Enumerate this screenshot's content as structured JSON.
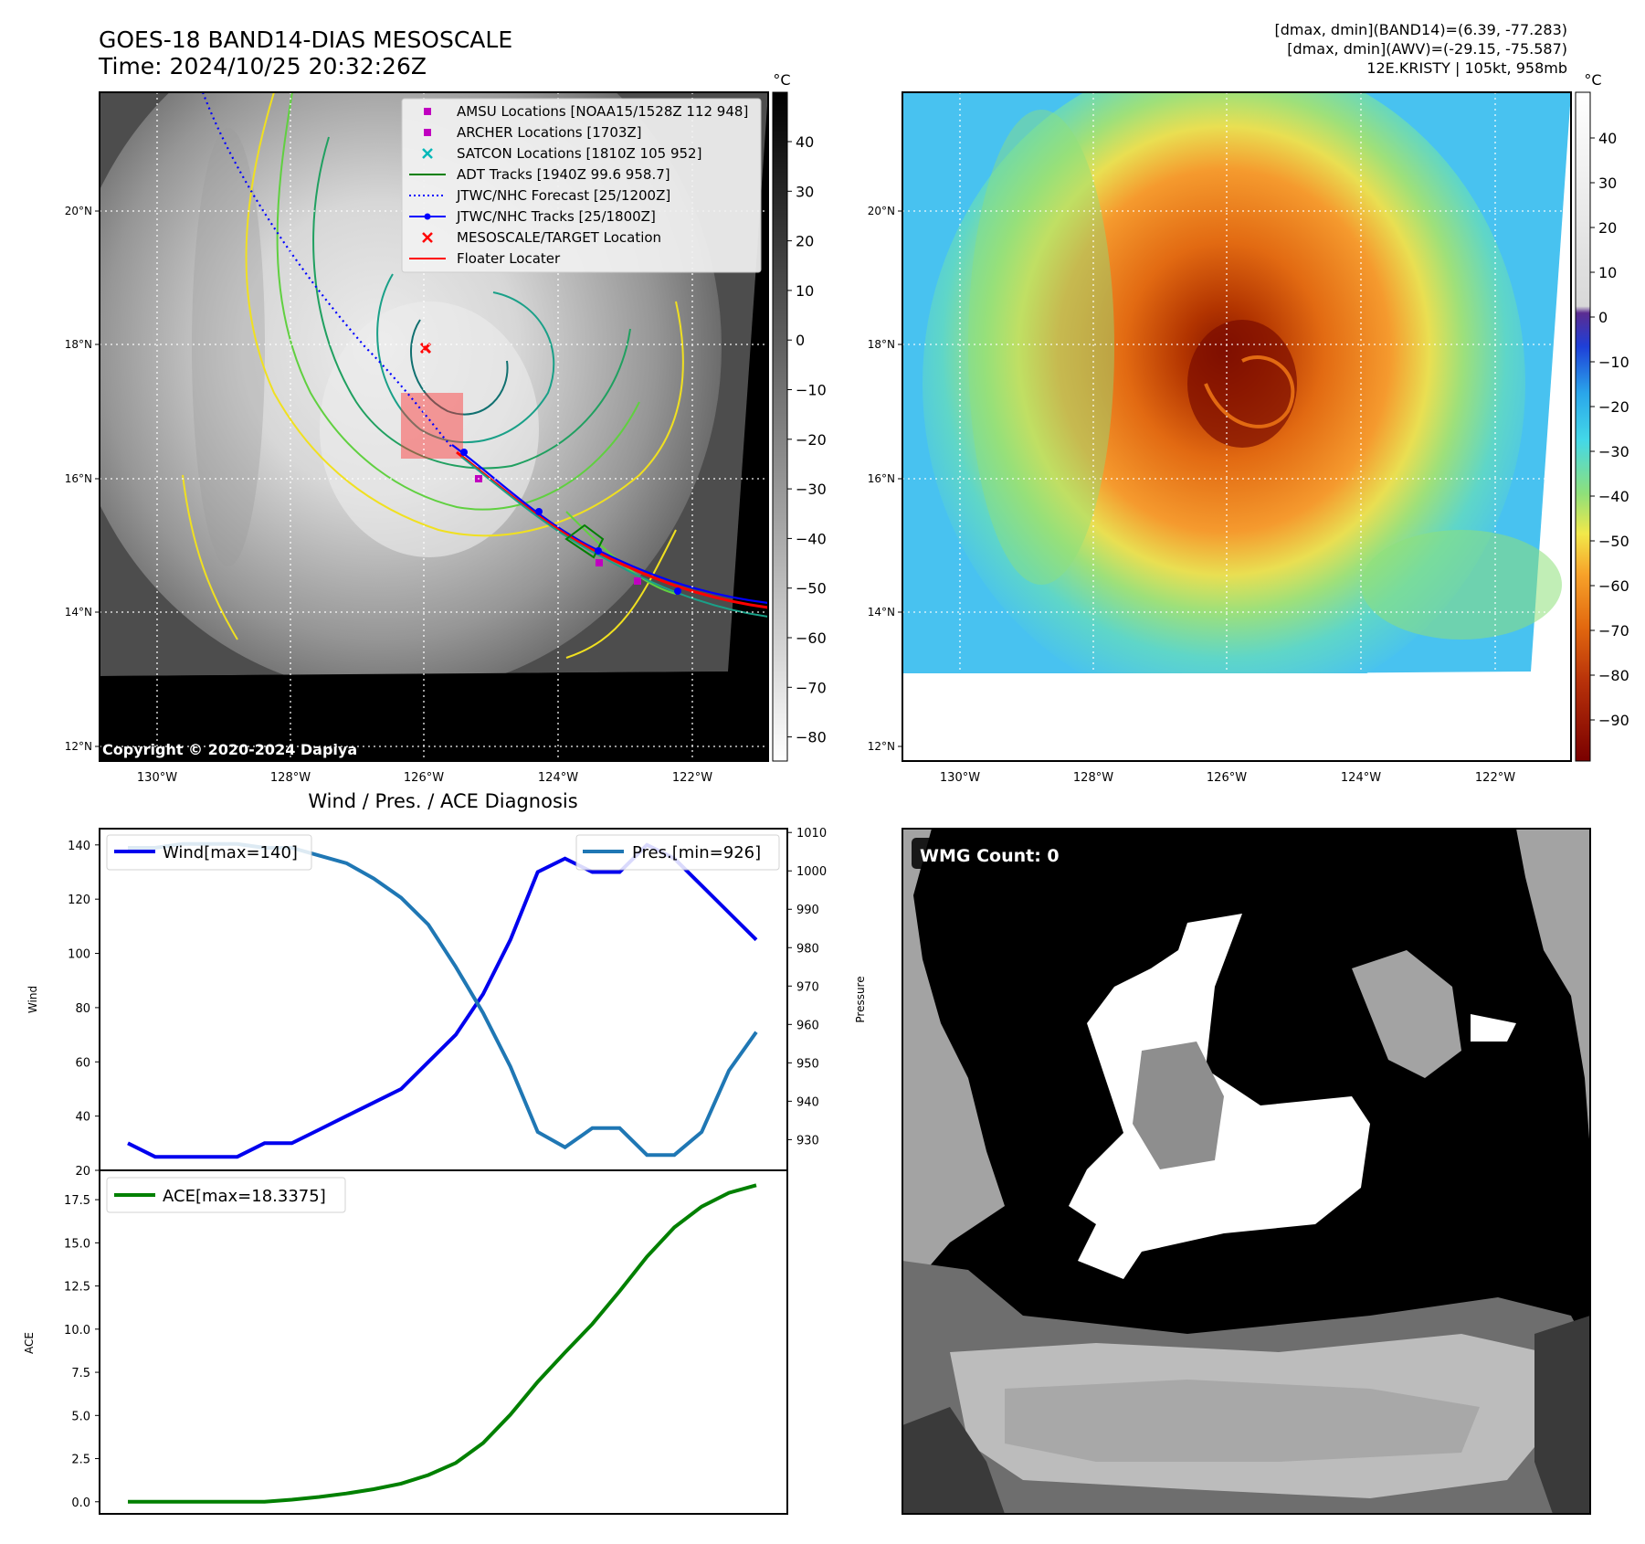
{
  "header": {
    "title_line1": "GOES-18 BAND14-DIAS MESOSCALE",
    "title_line2": "Time: 2024/10/25 20:32:26Z",
    "info_line1": "[dmax, dmin](BAND14)=(6.39, -77.283)",
    "info_line2": "[dmax, dmin](AWV)=(-29.15, -75.587)",
    "info_line3": "12E.KRISTY | 105kt, 958mb"
  },
  "map_axes": {
    "lat_ticks": [
      "20°N",
      "18°N",
      "16°N",
      "14°N",
      "12°N"
    ],
    "lon_ticks": [
      "130°W",
      "128°W",
      "126°W",
      "124°W",
      "122°W"
    ]
  },
  "ir_panel": {
    "colorbar_unit": "°C",
    "colorbar_ticks": [
      "40",
      "30",
      "20",
      "10",
      "0",
      "−10",
      "−20",
      "−30",
      "−40",
      "−50",
      "−60",
      "−70",
      "−80"
    ],
    "copyright": "Copyright © 2020-2024 Dapiya",
    "legend": [
      {
        "label": "AMSU Locations [NOAA15/1528Z 112 948]",
        "marker": "square",
        "color": "#c000c0"
      },
      {
        "label": "ARCHER Locations [1703Z]",
        "marker": "square",
        "color": "#c000c0"
      },
      {
        "label": "SATCON Locations [1810Z 105 952]",
        "marker": "x",
        "color": "#00b8b8"
      },
      {
        "label": "ADT Tracks [1940Z 99.6 958.7]",
        "marker": "line",
        "color": "#008000"
      },
      {
        "label": "JTWC/NHC Forecast [25/1200Z]",
        "marker": "dotted",
        "color": "#0000ff"
      },
      {
        "label": "JTWC/NHC Tracks [25/1800Z]",
        "marker": "line-dot",
        "color": "#0000ff"
      },
      {
        "label": "MESOSCALE/TARGET Location",
        "marker": "x",
        "color": "#ff0000"
      },
      {
        "label": "Floater Locater",
        "marker": "line",
        "color": "#ff0000"
      }
    ]
  },
  "wv_panel": {
    "colorbar_unit": "°C",
    "colorbar_ticks": [
      "40",
      "30",
      "20",
      "10",
      "0",
      "−10",
      "−20",
      "−30",
      "−40",
      "−50",
      "−60",
      "−70",
      "−80",
      "−90"
    ]
  },
  "chart_data": [
    {
      "type": "line",
      "title": "Wind / Pres. / ACE Diagnosis",
      "ylabel": "Wind",
      "y2label": "Pressure",
      "ylim": [
        20,
        146
      ],
      "y2lim": [
        922,
        1011
      ],
      "yticks": [
        20,
        40,
        60,
        80,
        100,
        120,
        140
      ],
      "y2ticks": [
        930,
        940,
        950,
        960,
        970,
        980,
        990,
        1000,
        1010
      ],
      "series": [
        {
          "name": "Wind[max=140]",
          "color": "#0000ee",
          "axis": "left",
          "values": [
            30,
            25,
            25,
            25,
            25,
            30,
            30,
            35,
            40,
            45,
            50,
            60,
            70,
            85,
            105,
            130,
            135,
            130,
            130,
            140,
            135,
            125,
            115,
            105
          ]
        },
        {
          "name": "Pres.[min=926]",
          "color": "#1f77b4",
          "axis": "right",
          "values": [
            1006,
            1006,
            1007,
            1007,
            1007,
            1006,
            1006,
            1004,
            1002,
            998,
            993,
            986,
            975,
            963,
            949,
            932,
            928,
            933,
            933,
            926,
            926,
            932,
            948,
            958
          ]
        }
      ]
    },
    {
      "type": "line",
      "ylabel": "ACE",
      "ylim": [
        -0.7,
        19.2
      ],
      "yticks": [
        "0.0",
        "2.5",
        "5.0",
        "7.5",
        "10.0",
        "12.5",
        "15.0",
        "17.5"
      ],
      "series": [
        {
          "name": "ACE[max=18.3375]",
          "color": "#008000",
          "values": [
            0,
            0,
            0,
            0,
            0,
            0,
            0.12,
            0.28,
            0.48,
            0.73,
            1.05,
            1.55,
            2.25,
            3.4,
            5.05,
            6.95,
            8.65,
            10.3,
            12.2,
            14.2,
            15.9,
            17.1,
            17.9,
            18.3375
          ]
        }
      ]
    }
  ],
  "wmg_panel": {
    "label": "WMG Count: 0"
  }
}
